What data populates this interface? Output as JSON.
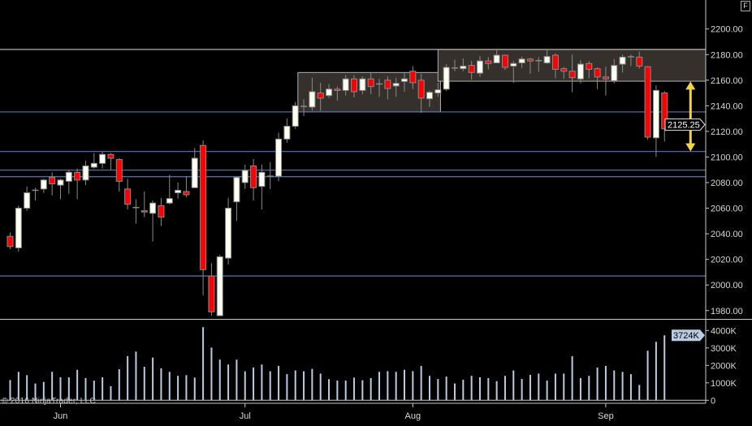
{
  "header": {
    "f_button": "F"
  },
  "copyright": "© 2016 NinjaTrader, LLC",
  "colors": {
    "background": "#000000",
    "up_body": "#fffff2",
    "down_body": "#ff0000",
    "wick": "#8a8a8a",
    "hline": "#5577bb",
    "box_fill": "#35302b",
    "box_stroke": "#b0b0b0",
    "arrow": "#f5d442",
    "volume": "#b8cce4"
  },
  "chart_data": [
    {
      "type": "candlestick",
      "panel": "price",
      "ylim": [
        1970,
        2215
      ],
      "y_ticks": [
        "2200.00",
        "2180.00",
        "2160.00",
        "2140.00",
        "2120.00",
        "2100.00",
        "2080.00",
        "2060.00",
        "2040.00",
        "2020.00",
        "2000.00",
        "1980.00"
      ],
      "last_price_label": "2125.25",
      "x_ticks": [
        {
          "label": "Jun",
          "bar": 6
        },
        {
          "label": "Jul",
          "bar": 28
        },
        {
          "label": "Aug",
          "bar": 48
        },
        {
          "label": "Sep",
          "bar": 71
        }
      ],
      "ohlc": [
        [
          2038,
          2041,
          2028,
          2030
        ],
        [
          2029,
          2062,
          2026,
          2060
        ],
        [
          2060,
          2077,
          2058,
          2072
        ],
        [
          2074,
          2076,
          2066,
          2074
        ],
        [
          2075,
          2083,
          2072,
          2082
        ],
        [
          2084,
          2088,
          2070,
          2079
        ],
        [
          2078,
          2083,
          2067,
          2082
        ],
        [
          2081,
          2090,
          2071,
          2088
        ],
        [
          2088,
          2091,
          2067,
          2082
        ],
        [
          2082,
          2097,
          2078,
          2093
        ],
        [
          2092,
          2103,
          2091,
          2095
        ],
        [
          2095,
          2104,
          2091,
          2102
        ],
        [
          2102,
          2103,
          2090,
          2099
        ],
        [
          2098,
          2099,
          2073,
          2081
        ],
        [
          2075,
          2083,
          2059,
          2063
        ],
        [
          2060.5,
          2067,
          2048,
          2060
        ],
        [
          2058,
          2073,
          2053,
          2057
        ],
        [
          2056,
          2066,
          2034,
          2064
        ],
        [
          2062,
          2068,
          2046,
          2053
        ],
        [
          2064,
          2086,
          2063,
          2067.5
        ],
        [
          2072,
          2080,
          2067.5,
          2074
        ],
        [
          2073,
          2085,
          2068.5,
          2070.5
        ],
        [
          2076,
          2107,
          2076,
          2099
        ],
        [
          2109,
          2113,
          1992,
          2012
        ],
        [
          2007,
          2017,
          1976,
          1979
        ],
        [
          1976,
          2023.5,
          1976,
          2022
        ],
        [
          2021,
          2068,
          2016,
          2060
        ],
        [
          2065,
          2085,
          2050,
          2084
        ],
        [
          2080,
          2094,
          2075,
          2089.5
        ],
        [
          2093,
          2098.5,
          2066,
          2076
        ],
        [
          2077,
          2094,
          2059,
          2088
        ],
        [
          2085,
          2096,
          2075,
          2085
        ],
        [
          2085,
          2119,
          2081,
          2114
        ],
        [
          2114,
          2130,
          2111,
          2124
        ],
        [
          2124,
          2143,
          2122,
          2140
        ],
        [
          2139,
          2145,
          2132,
          2139.5
        ],
        [
          2139,
          2162,
          2136,
          2151
        ],
        [
          2150,
          2158,
          2136,
          2146
        ],
        [
          2148,
          2157,
          2146,
          2153
        ],
        [
          2153,
          2155,
          2144,
          2152
        ],
        [
          2152,
          2164,
          2148,
          2161
        ],
        [
          2161,
          2164,
          2146.5,
          2151
        ],
        [
          2152,
          2163,
          2149,
          2161
        ],
        [
          2161,
          2166,
          2149,
          2155
        ],
        [
          2157,
          2161,
          2147,
          2156.5
        ],
        [
          2160,
          2163,
          2145,
          2153.5
        ],
        [
          2155.5,
          2162,
          2147,
          2157.5
        ],
        [
          2159,
          2166,
          2151,
          2161
        ],
        [
          2167,
          2171,
          2153,
          2158
        ],
        [
          2160,
          2165,
          2134.5,
          2146
        ],
        [
          2145.5,
          2152,
          2139,
          2150.5
        ],
        [
          2150,
          2158,
          2147,
          2152.5
        ],
        [
          2153,
          2172.5,
          2151.5,
          2170
        ],
        [
          2169.5,
          2176,
          2167,
          2169.25
        ],
        [
          2169,
          2177,
          2167,
          2171
        ],
        [
          2171.5,
          2175,
          2160.5,
          2166
        ],
        [
          2165.5,
          2179,
          2162.5,
          2175
        ],
        [
          2175,
          2178,
          2168.5,
          2173
        ],
        [
          2173.5,
          2184,
          2173.5,
          2179.5
        ],
        [
          2179.5,
          2180,
          2168,
          2170
        ],
        [
          2171,
          2175,
          2158,
          2173
        ],
        [
          2173.5,
          2178.5,
          2169.5,
          2176.5
        ],
        [
          2176.5,
          2177.5,
          2165,
          2175
        ],
        [
          2175,
          2178,
          2166.5,
          2175.25
        ],
        [
          2173.5,
          2184.5,
          2172.5,
          2178.5
        ],
        [
          2179.5,
          2181,
          2161.5,
          2168.5
        ],
        [
          2169,
          2170.5,
          2161,
          2167
        ],
        [
          2167,
          2180,
          2150.5,
          2162
        ],
        [
          2161,
          2175.5,
          2157.5,
          2172.5
        ],
        [
          2173,
          2175,
          2161.5,
          2168.5
        ],
        [
          2169,
          2170,
          2153,
          2162.5
        ],
        [
          2162.5,
          2170.5,
          2148,
          2161
        ],
        [
          2159.5,
          2176.5,
          2157.5,
          2171.5
        ],
        [
          2172.5,
          2180,
          2166,
          2178
        ],
        [
          2178,
          2180,
          2171,
          2178.25
        ],
        [
          2178,
          2182.5,
          2169,
          2171
        ],
        [
          2170.5,
          2171,
          2113.5,
          2115.5
        ],
        [
          2115,
          2156,
          2100,
          2152
        ],
        [
          2150,
          2151.5,
          2112,
          2122
        ],
        [
          2125,
          2130,
          2120.5,
          2125.25
        ]
      ],
      "horizontal_lines": [
        {
          "price": 2184,
          "color": "#c8c8c8"
        },
        {
          "price": 2135.2,
          "color": "#5577bb"
        },
        {
          "price": 2104.3,
          "color": "#5577bb"
        },
        {
          "price": 2089.7,
          "color": "#5577bb"
        },
        {
          "price": 2084.6,
          "color": "#5577bb"
        },
        {
          "price": 2007,
          "color": "#5577bb"
        }
      ],
      "rectangles": [
        {
          "bar_start": 34.3,
          "bar_end": 51.3,
          "price_top": 2166,
          "price_bottom": 2135.2
        },
        {
          "bar_start": 51.0,
          "bar_end": 83.5,
          "price_top": 2184,
          "price_bottom": 2159.2
        }
      ],
      "arrows": [
        {
          "bar": 81.1,
          "price_top": 2159,
          "price_bottom": 2104.3,
          "double_headed": true
        }
      ]
    },
    {
      "type": "bar",
      "panel": "volume",
      "unit": "K",
      "ylim": [
        0,
        4500
      ],
      "y_ticks": [
        "4000K",
        "3000K",
        "2000K",
        "1000K",
        "0"
      ],
      "last_value_label": "3724K",
      "values": [
        1160,
        1630,
        1440,
        960,
        1050,
        1630,
        1320,
        1320,
        1750,
        1270,
        1130,
        1320,
        810,
        1780,
        2530,
        2790,
        1920,
        2450,
        1830,
        1630,
        1400,
        1440,
        1300,
        4190,
        3020,
        2330,
        2050,
        2330,
        1660,
        1880,
        2050,
        1660,
        1970,
        1500,
        1710,
        1660,
        1800,
        1530,
        1210,
        1130,
        1130,
        1300,
        1150,
        1270,
        1630,
        1670,
        1630,
        1750,
        1670,
        1970,
        1400,
        1220,
        1360,
        960,
        1180,
        1400,
        1320,
        1270,
        1100,
        1400,
        1710,
        1220,
        1460,
        1530,
        1130,
        1530,
        1530,
        2530,
        1270,
        1400,
        1880,
        1970,
        1710,
        1630,
        1500,
        880,
        2840,
        3350,
        3724,
        null
      ]
    }
  ]
}
